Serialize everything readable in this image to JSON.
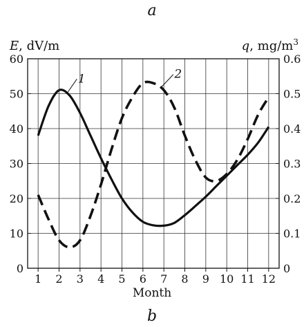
{
  "figure": {
    "panel_top_label": "a",
    "panel_bottom_label": "b"
  },
  "chart_data": {
    "type": "line",
    "x": [
      1,
      1.5,
      2,
      2.5,
      3,
      3.5,
      4,
      4.5,
      5,
      5.5,
      6,
      6.5,
      7,
      7.5,
      8,
      8.5,
      9,
      9.5,
      10,
      10.5,
      11,
      11.5,
      12
    ],
    "xlabel": "Month",
    "xlim": [
      0.5,
      12.5
    ],
    "x_ticks": [
      "1",
      "2",
      "3",
      "4",
      "5",
      "6",
      "7",
      "8",
      "9",
      "10",
      "11",
      "12"
    ],
    "left_axis": {
      "symbol": "E",
      "unit": ", dV/m",
      "ylim": [
        0,
        60
      ],
      "ticks": [
        "0",
        "10",
        "20",
        "30",
        "40",
        "50",
        "60"
      ]
    },
    "right_axis": {
      "symbol": "q",
      "unit": ", mg/m",
      "unit_sup": "3",
      "ylim": [
        0,
        0.6
      ],
      "ticks": [
        "0",
        "0.1",
        "0.2",
        "0.3",
        "0.4",
        "0.5",
        "0.6"
      ]
    },
    "grid": true,
    "series": [
      {
        "name": "1",
        "axis": "left",
        "style": "solid",
        "color": "#111111",
        "values": [
          38,
          46.5,
          51,
          49.5,
          44.5,
          38,
          31.5,
          25.5,
          20,
          16,
          13.3,
          12.3,
          12.2,
          13,
          15.2,
          17.8,
          20.5,
          23.5,
          26.5,
          29.5,
          32.5,
          36,
          40.5
        ]
      },
      {
        "name": "2",
        "axis": "right",
        "style": "dashed",
        "color": "#111111",
        "values": [
          0.21,
          0.14,
          0.08,
          0.06,
          0.08,
          0.15,
          0.24,
          0.34,
          0.43,
          0.49,
          0.53,
          0.53,
          0.51,
          0.46,
          0.38,
          0.31,
          0.26,
          0.25,
          0.27,
          0.31,
          0.37,
          0.44,
          0.49
        ]
      }
    ]
  }
}
